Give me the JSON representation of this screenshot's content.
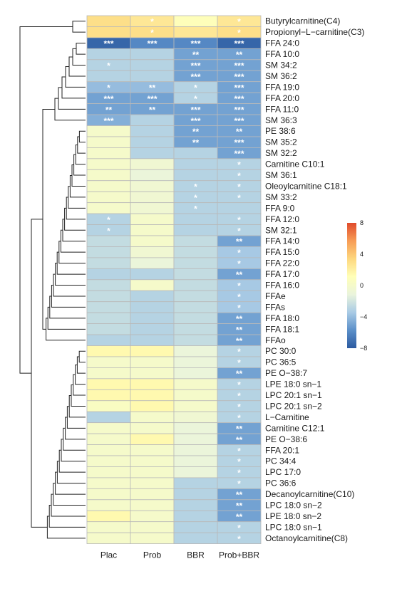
{
  "chart_data": {
    "type": "heatmap",
    "columns": [
      "Plac",
      "Prob",
      "BBR",
      "Prob+BBR"
    ],
    "rows": [
      "Butyrylcarnitine(C4)",
      "Propionyl−L−carnitine(C3)",
      "FFA 24:0",
      "FFA 10:0",
      "SM 34:2",
      "SM 36:2",
      "FFA 19:0",
      "FFA 20:0",
      "FFA 11:0",
      "SM 36:3",
      "PE 38:6",
      "SM 35:2",
      "SM 32:2",
      "Carnitine C10:1",
      "SM 36:1",
      "Oleoylcarnitine C18:1",
      "SM 33:2",
      "FFA 9:0",
      "FFA 12:0",
      "SM 32:1",
      "FFA 14:0",
      "FFA 15:0",
      "FFA 22:0",
      "FFA 17:0",
      "FFA 16:0",
      "FFAe",
      "FFAs",
      "FFA 18:0",
      "FFA 18:1",
      "FFAo",
      "PC 30:0",
      "PC 36:5",
      "PE O−38:7",
      "LPE 18:0 sn−1",
      "LPC 20:1 sn−1",
      "LPC 20:1 sn−2",
      "L−Carnitine",
      "Carnitine C12:1",
      "PE O−38:6",
      "FFA 20:1",
      "PC 34:4",
      "LPC 17:0",
      "PC 36:6",
      "Decanoylcarnitine(C10)",
      "LPC 18:0 sn−2",
      "LPE 18:0 sn−2",
      "LPC 18:0 sn−1",
      "Octanoylcarnitine(C8)"
    ],
    "values": [
      [
        3.0,
        2.5,
        1.0,
        2.5
      ],
      [
        3.0,
        3.0,
        2.5,
        3.0
      ],
      [
        -7.5,
        -6.0,
        -6.0,
        -7.5
      ],
      [
        -3.0,
        -3.0,
        -5.0,
        -5.0
      ],
      [
        -3.0,
        -3.0,
        -5.0,
        -5.0
      ],
      [
        -3.0,
        -3.0,
        -5.0,
        -5.0
      ],
      [
        -4.0,
        -4.0,
        -3.0,
        -5.0
      ],
      [
        -5.0,
        -5.0,
        -3.0,
        -5.0
      ],
      [
        -5.0,
        -5.0,
        -5.0,
        -5.0
      ],
      [
        -4.5,
        -3.0,
        -5.0,
        -5.0
      ],
      [
        0.0,
        -3.0,
        -5.0,
        -5.0
      ],
      [
        0.0,
        -3.0,
        -5.0,
        -5.0
      ],
      [
        0.0,
        -3.0,
        -3.0,
        -5.0
      ],
      [
        0.0,
        -0.5,
        -3.0,
        -3.0
      ],
      [
        0.0,
        -1.0,
        -3.0,
        -3.0
      ],
      [
        0.0,
        -0.5,
        -3.0,
        -3.0
      ],
      [
        0.0,
        -0.5,
        -3.0,
        -3.0
      ],
      [
        0.0,
        -0.5,
        -3.0,
        -3.0
      ],
      [
        -3.0,
        0.0,
        -3.0,
        -3.0
      ],
      [
        -3.0,
        0.0,
        -3.0,
        -3.0
      ],
      [
        -2.5,
        0.0,
        -2.5,
        -5.0
      ],
      [
        -2.5,
        -0.5,
        -2.5,
        -3.5
      ],
      [
        -2.5,
        -1.0,
        -2.5,
        -3.5
      ],
      [
        -3.0,
        -3.0,
        -2.5,
        -5.0
      ],
      [
        -2.5,
        0.0,
        -2.5,
        -3.5
      ],
      [
        -2.5,
        -3.0,
        -2.5,
        -3.5
      ],
      [
        -2.5,
        -3.0,
        -2.5,
        -3.5
      ],
      [
        -2.5,
        -3.0,
        -2.5,
        -5.0
      ],
      [
        -2.5,
        -3.0,
        -2.5,
        -5.0
      ],
      [
        -3.0,
        -3.0,
        -2.5,
        -5.0
      ],
      [
        1.5,
        1.5,
        -1.0,
        -3.0
      ],
      [
        0.0,
        0.0,
        -1.0,
        -3.0
      ],
      [
        0.0,
        0.0,
        -1.0,
        -5.0
      ],
      [
        1.5,
        1.5,
        0.0,
        -3.0
      ],
      [
        1.5,
        1.5,
        0.0,
        -3.0
      ],
      [
        0.5,
        1.5,
        0.0,
        -3.0
      ],
      [
        -3.0,
        0.0,
        -0.5,
        -3.0
      ],
      [
        0.0,
        0.0,
        -1.0,
        -5.0
      ],
      [
        0.0,
        1.5,
        -1.0,
        -5.0
      ],
      [
        0.0,
        0.0,
        -1.0,
        -3.0
      ],
      [
        0.0,
        0.0,
        -1.0,
        -3.0
      ],
      [
        0.0,
        0.0,
        -1.0,
        -3.0
      ],
      [
        0.0,
        0.0,
        -3.0,
        -3.0
      ],
      [
        0.0,
        0.0,
        -3.0,
        -5.0
      ],
      [
        0.0,
        0.0,
        -3.0,
        -5.0
      ],
      [
        1.5,
        0.0,
        -3.0,
        -5.0
      ],
      [
        0.0,
        0.0,
        -3.0,
        -3.0
      ],
      [
        0.0,
        0.0,
        -3.0,
        -3.0
      ]
    ],
    "significance": [
      [
        "",
        "*",
        "",
        "*"
      ],
      [
        "",
        "*",
        "",
        "*"
      ],
      [
        "***",
        "***",
        "***",
        "***"
      ],
      [
        "",
        "",
        "**",
        "**"
      ],
      [
        "*",
        "",
        "***",
        "***"
      ],
      [
        "",
        "",
        "***",
        "***"
      ],
      [
        "*",
        "**",
        "*",
        "***"
      ],
      [
        "***",
        "***",
        "*",
        "***"
      ],
      [
        "**",
        "**",
        "***",
        "***"
      ],
      [
        "***",
        "",
        "***",
        "***"
      ],
      [
        "",
        "",
        "**",
        "**"
      ],
      [
        "",
        "",
        "**",
        "***"
      ],
      [
        "",
        "",
        "",
        "***"
      ],
      [
        "",
        "",
        "",
        "*"
      ],
      [
        "",
        "",
        "",
        "*"
      ],
      [
        "",
        "",
        "*",
        "*"
      ],
      [
        "",
        "",
        "*",
        "*"
      ],
      [
        "",
        "",
        "*",
        ""
      ],
      [
        "*",
        "",
        "",
        "*"
      ],
      [
        "*",
        "",
        "",
        "*"
      ],
      [
        "",
        "",
        "",
        "**"
      ],
      [
        "",
        "",
        "",
        "*"
      ],
      [
        "",
        "",
        "",
        "*"
      ],
      [
        "",
        "",
        "",
        "**"
      ],
      [
        "",
        "",
        "",
        "*"
      ],
      [
        "",
        "",
        "",
        "*"
      ],
      [
        "",
        "",
        "",
        "*"
      ],
      [
        "",
        "",
        "",
        "**"
      ],
      [
        "",
        "",
        "",
        "**"
      ],
      [
        "",
        "",
        "",
        "**"
      ],
      [
        "",
        "",
        "",
        "*"
      ],
      [
        "",
        "",
        "",
        "*"
      ],
      [
        "",
        "",
        "",
        "**"
      ],
      [
        "",
        "",
        "",
        "*"
      ],
      [
        "",
        "",
        "",
        "*"
      ],
      [
        "",
        "",
        "",
        "*"
      ],
      [
        "",
        "",
        "",
        "*"
      ],
      [
        "",
        "",
        "",
        "**"
      ],
      [
        "",
        "",
        "",
        "**"
      ],
      [
        "",
        "",
        "",
        "*"
      ],
      [
        "",
        "",
        "",
        "*"
      ],
      [
        "",
        "",
        "",
        "*"
      ],
      [
        "",
        "",
        "",
        "*"
      ],
      [
        "",
        "",
        "",
        "**"
      ],
      [
        "",
        "",
        "",
        "**"
      ],
      [
        "",
        "",
        "",
        "**"
      ],
      [
        "",
        "",
        "",
        "*"
      ],
      [
        "",
        "",
        "",
        "*"
      ]
    ],
    "color_scale": {
      "min": -8,
      "max": 8,
      "ticks": [
        -8,
        -4,
        0,
        4,
        8
      ],
      "stops": [
        "#2c5aa0",
        "#5b8fc9",
        "#a9cbe5",
        "#eaf4dc",
        "#ffffb8",
        "#fdd77e",
        "#f79c55",
        "#e04b2c"
      ]
    },
    "legend_position": "right",
    "row_dendrogram": true
  }
}
